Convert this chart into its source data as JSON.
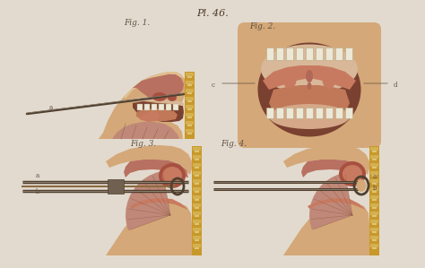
{
  "background_color": "#e2dace",
  "title_text": "Pl. 46.",
  "title_fontsize": 8,
  "title_color": "#4a3a2a",
  "fig_labels": [
    "Fig. 1.",
    "Fig. 2.",
    "Fig. 3.",
    "Fig. 4."
  ],
  "fig_label_fontsize": 6.5,
  "skin_tan": "#d4a878",
  "skin_light": "#e0c090",
  "skin_dark": "#c08060",
  "skin_pink": "#c87a60",
  "muscle_red": "#a85040",
  "muscle_light": "#c07060",
  "muscle_fan": "#c08878",
  "cavity_color": "#b87060",
  "throat_dark": "#7a4030",
  "teeth_color": "#ece8d8",
  "teeth_edge": "#b8a880",
  "instrument_dark": "#504030",
  "instrument_mid": "#706050",
  "instrument_light": "#908070",
  "border_gold": "#c8982a",
  "border_tan": "#d4b050",
  "border_cream": "#e8d898",
  "annot_color": "#605040",
  "tongue_color": "#c07858",
  "uvula_color": "#b06858",
  "gum_color": "#d4a888",
  "palate_color": "#d8b898",
  "nasal_fill": "#b87060",
  "shadow_dark": "#8a5840"
}
